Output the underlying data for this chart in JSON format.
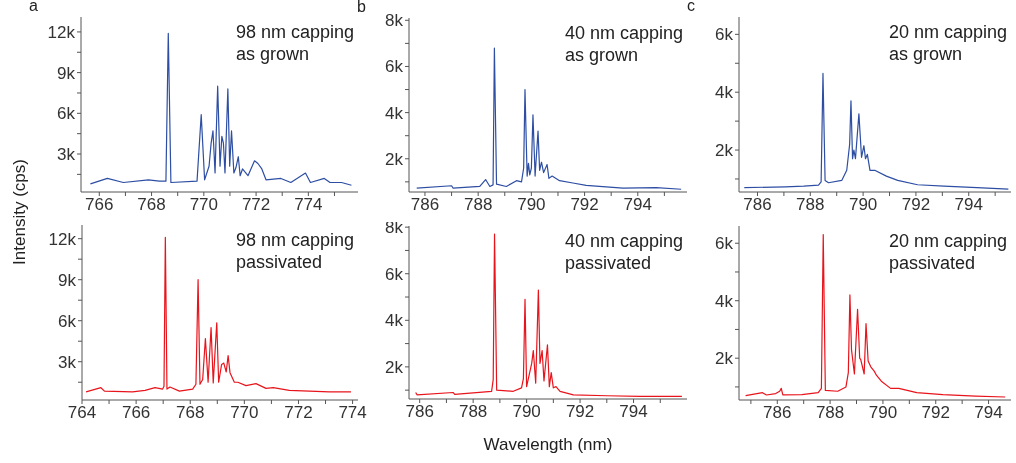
{
  "chart_data": [
    {
      "type": "line",
      "title": "a",
      "annotations": [
        "98 nm capping",
        "as grown"
      ],
      "ylabel": "Intensity (cps)",
      "marker": "none",
      "line_style": "solid",
      "xlim": [
        765.3,
        775.9
      ],
      "xticks": [
        766,
        {
          "value": 767,
          "label": null
        },
        768,
        {
          "value": 769,
          "label": null
        },
        770,
        {
          "value": 771,
          "label": null
        },
        772,
        {
          "value": 773,
          "label": null
        },
        774,
        {
          "value": 775,
          "label": null
        }
      ],
      "ylim": [
        200,
        13100
      ],
      "yticks": [
        {
          "value": 1500,
          "label": null
        },
        {
          "value": 3000,
          "label": "3k"
        },
        {
          "value": 4500,
          "label": null
        },
        {
          "value": 6000,
          "label": "6k"
        },
        {
          "value": 7500,
          "label": null
        },
        {
          "value": 9000,
          "label": "9k"
        },
        {
          "value": 10500,
          "label": null
        },
        {
          "value": 12000,
          "label": "12k"
        }
      ],
      "series": [
        {
          "color": "#2d4ea3",
          "x": [
            765.66,
            766.31,
            766.92,
            767.88,
            768.3,
            768.55,
            768.64,
            768.74,
            769.74,
            769.9,
            770.03,
            770.2,
            770.28,
            770.35,
            770.43,
            770.53,
            770.62,
            770.69,
            770.75,
            770.81,
            770.92,
            770.99,
            771.06,
            771.15,
            771.23,
            771.32,
            771.39,
            771.48,
            771.69,
            771.94,
            772.07,
            772.22,
            772.38,
            772.95,
            773.33,
            773.89,
            774.08,
            774.61,
            774.83,
            775.27,
            775.65
          ],
          "values": [
            800,
            1200,
            900,
            1100,
            1000,
            1000,
            11900,
            900,
            1000,
            5900,
            1100,
            2100,
            3800,
            4700,
            1600,
            8000,
            2100,
            4300,
            3800,
            1600,
            7800,
            2100,
            4700,
            1600,
            2000,
            2800,
            1400,
            1900,
            1400,
            2500,
            2300,
            1900,
            1100,
            1200,
            900,
            1600,
            900,
            1200,
            900,
            900,
            700
          ]
        }
      ]
    },
    {
      "type": "line",
      "title": "b",
      "annotations": [
        "40 nm capping",
        "as grown"
      ],
      "marker": "none",
      "line_style": "solid",
      "xlim": [
        785.4,
        795.85
      ],
      "xticks": [
        786,
        {
          "value": 787,
          "label": null
        },
        788,
        {
          "value": 789,
          "label": null
        },
        790,
        {
          "value": 791,
          "label": null
        },
        792,
        {
          "value": 793,
          "label": null
        },
        794,
        {
          "value": 795,
          "label": null
        }
      ],
      "ylim": [
        560,
        8100
      ],
      "yticks": [
        {
          "value": 1000,
          "label": null
        },
        {
          "value": 2000,
          "label": "2k"
        },
        {
          "value": 3000,
          "label": null
        },
        {
          "value": 4000,
          "label": "4k"
        },
        {
          "value": 5000,
          "label": null
        },
        {
          "value": 6000,
          "label": "6k"
        },
        {
          "value": 7000,
          "label": null
        },
        {
          "value": 8000,
          "label": "8k"
        }
      ],
      "series": [
        {
          "color": "#2d4ea3",
          "x": [
            785.69,
            787.0,
            787.06,
            788.06,
            788.28,
            788.44,
            788.56,
            788.61,
            788.69,
            789.06,
            789.44,
            789.63,
            789.71,
            789.76,
            789.84,
            789.89,
            789.94,
            790.0,
            790.06,
            790.14,
            790.25,
            790.31,
            790.38,
            790.46,
            790.59,
            790.66,
            790.78,
            791.06,
            791.56,
            792.06,
            792.56,
            793.44,
            794.69,
            795.63
          ],
          "values": [
            730,
            830,
            730,
            800,
            1100,
            800,
            870,
            6800,
            900,
            800,
            1050,
            1000,
            1600,
            5000,
            1250,
            1800,
            1300,
            1600,
            3900,
            1250,
            3200,
            1500,
            1850,
            1400,
            1750,
            1150,
            1250,
            1050,
            950,
            850,
            800,
            730,
            750,
            680
          ]
        }
      ]
    },
    {
      "type": "line",
      "title": "c",
      "annotations": [
        "20 nm capping",
        "as grown"
      ],
      "marker": "none",
      "line_style": "solid",
      "xlim": [
        785.3,
        795.6
      ],
      "xticks": [
        786,
        {
          "value": 787,
          "label": null
        },
        788,
        {
          "value": 789,
          "label": null
        },
        790,
        {
          "value": 791,
          "label": null
        },
        792,
        {
          "value": 793,
          "label": null
        },
        794,
        {
          "value": 795,
          "label": null
        }
      ],
      "ylim": [
        550,
        6600
      ],
      "yticks": [
        {
          "value": 1000,
          "label": null
        },
        {
          "value": 2000,
          "label": "2k"
        },
        {
          "value": 3000,
          "label": null
        },
        {
          "value": 4000,
          "label": "4k"
        },
        {
          "value": 5000,
          "label": null
        },
        {
          "value": 6000,
          "label": "6k"
        }
      ],
      "series": [
        {
          "color": "#2d4ea3",
          "x": [
            785.5,
            787.06,
            787.75,
            788.31,
            788.41,
            788.48,
            788.56,
            788.69,
            789.19,
            789.38,
            789.49,
            789.54,
            789.6,
            789.65,
            789.71,
            789.84,
            789.94,
            790.03,
            790.09,
            790.16,
            790.26,
            790.44,
            790.88,
            791.31,
            792.06,
            793.06,
            794.31,
            795.5
          ],
          "values": [
            700,
            730,
            750,
            790,
            900,
            4650,
            950,
            870,
            950,
            1300,
            2200,
            3700,
            1700,
            2000,
            1700,
            3250,
            1750,
            2150,
            1700,
            1850,
            1300,
            1300,
            1100,
            950,
            800,
            750,
            700,
            650
          ]
        }
      ]
    },
    {
      "type": "line",
      "annotations": [
        "98 nm capping",
        "passivated"
      ],
      "marker": "none",
      "line_style": "solid",
      "xlim": [
        764,
        774.2
      ],
      "xticks": [
        764,
        {
          "value": 765,
          "label": null
        },
        766,
        {
          "value": 767,
          "label": null
        },
        768,
        {
          "value": 769,
          "label": null
        },
        770,
        {
          "value": 771,
          "label": null
        },
        772,
        {
          "value": 773,
          "label": null
        },
        774
      ],
      "ylim": [
        200,
        13000
      ],
      "yticks": [
        {
          "value": 1500,
          "label": null
        },
        {
          "value": 3000,
          "label": "3k"
        },
        {
          "value": 4500,
          "label": null
        },
        {
          "value": 6000,
          "label": "6k"
        },
        {
          "value": 7500,
          "label": null
        },
        {
          "value": 9000,
          "label": "9k"
        },
        {
          "value": 10500,
          "label": null
        },
        {
          "value": 12000,
          "label": "12k"
        }
      ],
      "series": [
        {
          "color": "#e8141c",
          "x": [
            764.15,
            764.7,
            764.83,
            765.87,
            766.33,
            766.7,
            766.98,
            767.03,
            767.08,
            767.14,
            767.25,
            767.6,
            768.09,
            768.21,
            768.29,
            768.36,
            768.46,
            768.56,
            768.66,
            768.77,
            768.85,
            768.98,
            769.05,
            769.16,
            769.24,
            769.33,
            769.4,
            769.47,
            769.63,
            769.76,
            770.06,
            770.43,
            770.8,
            771.07,
            771.66,
            772.4,
            773.14,
            773.94
          ],
          "values": [
            800,
            1100,
            850,
            800,
            900,
            1100,
            1000,
            1200,
            12100,
            1000,
            1150,
            850,
            1000,
            1350,
            9000,
            1350,
            1700,
            4700,
            1500,
            5500,
            1450,
            5850,
            1500,
            2800,
            2900,
            2250,
            3450,
            2200,
            1500,
            1500,
            1250,
            1400,
            1050,
            1100,
            900,
            850,
            800,
            800
          ]
        }
      ]
    },
    {
      "type": "line",
      "annotations": [
        "40 nm capping",
        "passivated"
      ],
      "xlabel": "Wavelength (nm)",
      "marker": "none",
      "line_style": "solid",
      "xlim": [
        785.6,
        796
      ],
      "xticks": [
        786,
        {
          "value": 787,
          "label": null
        },
        788,
        {
          "value": 789,
          "label": null
        },
        790,
        {
          "value": 791,
          "label": null
        },
        792,
        {
          "value": 793,
          "label": null
        },
        794,
        {
          "value": 795,
          "label": null
        }
      ],
      "ylim": [
        620,
        8050
      ],
      "yticks": [
        {
          "value": 1000,
          "label": null
        },
        {
          "value": 2000,
          "label": "2k"
        },
        {
          "value": 3000,
          "label": null
        },
        {
          "value": 4000,
          "label": "4k"
        },
        {
          "value": 5000,
          "label": null
        },
        {
          "value": 6000,
          "label": "6k"
        },
        {
          "value": 7000,
          "label": null
        },
        {
          "value": 8000,
          "label": "8k"
        }
      ],
      "series": [
        {
          "color": "#e8141c",
          "x": [
            785.85,
            785.9,
            787.25,
            787.31,
            788.0,
            788.69,
            788.75,
            788.8,
            788.88,
            789.5,
            789.81,
            789.88,
            789.94,
            790.0,
            790.19,
            790.25,
            790.34,
            790.44,
            790.5,
            790.58,
            790.65,
            790.78,
            790.85,
            790.92,
            791.0,
            791.1,
            791.25,
            791.75,
            793.0,
            794.25,
            795.81
          ],
          "values": [
            900,
            800,
            900,
            820,
            880,
            950,
            1450,
            7700,
            1000,
            950,
            1100,
            1500,
            4900,
            1150,
            2150,
            2700,
            1300,
            5300,
            2150,
            2700,
            1400,
            2950,
            1150,
            1750,
            1100,
            1150,
            950,
            800,
            760,
            730,
            730
          ]
        }
      ]
    },
    {
      "type": "line",
      "annotations": [
        "20 nm capping",
        "passivated"
      ],
      "marker": "none",
      "line_style": "solid",
      "xlim": [
        784.55,
        794.85
      ],
      "xticks": [
        {
          "value": 785,
          "label": null
        },
        786,
        {
          "value": 787,
          "label": null
        },
        788,
        {
          "value": 789,
          "label": null
        },
        790,
        {
          "value": 791,
          "label": null
        },
        792,
        {
          "value": 793,
          "label": null
        },
        794
      ],
      "ylim": [
        545,
        6600
      ],
      "yticks": [
        {
          "value": 1000,
          "label": null
        },
        {
          "value": 2000,
          "label": "2k"
        },
        {
          "value": 3000,
          "label": null
        },
        {
          "value": 4000,
          "label": "4k"
        },
        {
          "value": 5000,
          "label": null
        },
        {
          "value": 6000,
          "label": "6k"
        }
      ],
      "series": [
        {
          "color": "#e8141c",
          "x": [
            784.8,
            785.44,
            785.59,
            785.94,
            786.09,
            786.15,
            786.21,
            786.93,
            787.55,
            787.67,
            787.74,
            787.82,
            788.29,
            788.6,
            788.69,
            788.75,
            788.81,
            788.92,
            789.04,
            789.12,
            789.16,
            789.29,
            789.36,
            789.44,
            789.54,
            789.67,
            789.76,
            789.94,
            790.29,
            790.6,
            791.28,
            792.27,
            793.51,
            794.63
          ],
          "values": [
            700,
            800,
            720,
            770,
            850,
            950,
            720,
            730,
            800,
            950,
            6300,
            880,
            850,
            1000,
            1500,
            4200,
            2300,
            1450,
            3700,
            2000,
            1950,
            1450,
            3200,
            1900,
            1700,
            1550,
            1400,
            1200,
            950,
            950,
            800,
            730,
            680,
            650
          ]
        }
      ]
    }
  ]
}
